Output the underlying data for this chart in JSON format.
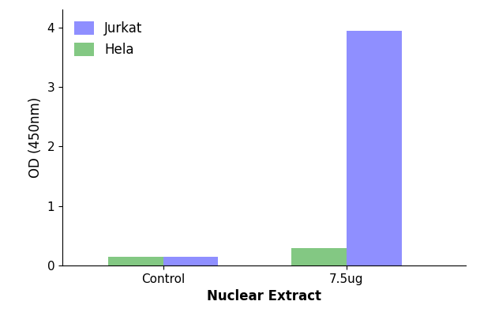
{
  "categories": [
    "Control",
    "7.5ug"
  ],
  "jurkat_values": [
    0.15,
    3.95
  ],
  "hela_values": [
    0.15,
    0.3
  ],
  "jurkat_color": "#7b7bff",
  "hela_color": "#6dbf6d",
  "xlabel": "Nuclear Extract",
  "ylabel": "OD (450nm)",
  "ylim": [
    0,
    4.3
  ],
  "yticks": [
    0,
    1,
    2,
    3,
    4
  ],
  "legend_labels": [
    "Jurkat",
    "Hela"
  ],
  "bar_width": 0.3,
  "label_fontsize": 12,
  "tick_fontsize": 11,
  "legend_fontsize": 12,
  "background_color": "#ffffff"
}
